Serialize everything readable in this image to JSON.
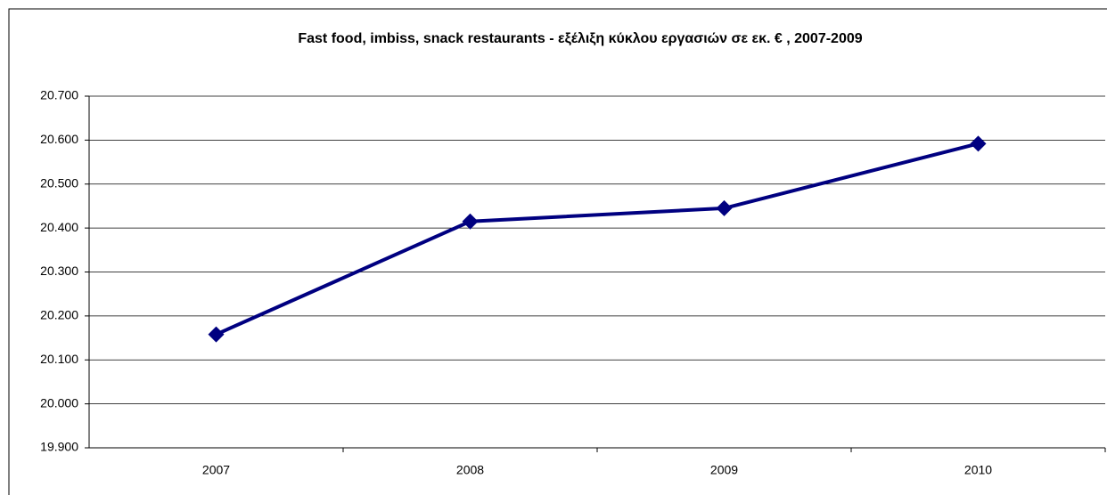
{
  "chart_data": {
    "type": "line",
    "title": "Fast food, imbiss, snack restaurants - εξέλιξη κύκλου εργασιών σε εκ. € , 2007-2009",
    "categories": [
      "2007",
      "2008",
      "2009",
      "2010"
    ],
    "series": [
      {
        "name": null,
        "color": "#000080",
        "values": [
          20158,
          20415,
          20445,
          20592
        ]
      }
    ],
    "ylim": [
      19900,
      20700
    ],
    "yticks": [
      {
        "value": 19900,
        "label": "19.900"
      },
      {
        "value": 20000,
        "label": "20.000"
      },
      {
        "value": 20100,
        "label": "20.100"
      },
      {
        "value": 20200,
        "label": "20.200"
      },
      {
        "value": 20300,
        "label": "20.300"
      },
      {
        "value": 20400,
        "label": "20.400"
      },
      {
        "value": 20500,
        "label": "20.500"
      },
      {
        "value": 20600,
        "label": "20.600"
      },
      {
        "value": 20700,
        "label": "20.700"
      }
    ],
    "grid": true
  }
}
